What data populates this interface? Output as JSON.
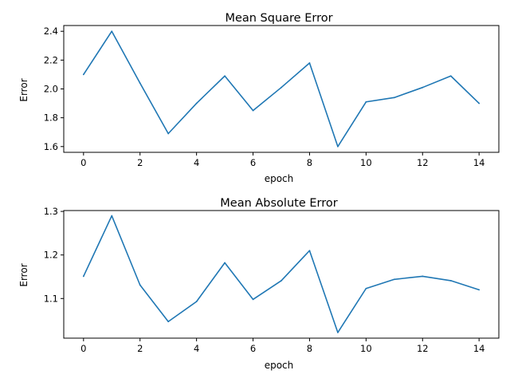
{
  "chart_data": [
    {
      "type": "line",
      "title": "Mean Square Error",
      "xlabel": "epoch",
      "ylabel": "Error",
      "xlim": [
        -0.7,
        14.7
      ],
      "ylim": [
        1.56,
        2.44
      ],
      "xticks": [
        0,
        2,
        4,
        6,
        8,
        10,
        12,
        14
      ],
      "xtick_labels": [
        "0",
        "2",
        "4",
        "6",
        "8",
        "10",
        "12",
        "14"
      ],
      "yticks": [
        1.6,
        1.8,
        2.0,
        2.2,
        2.4
      ],
      "ytick_labels": [
        "1.6",
        "1.8",
        "2.0",
        "2.2",
        "2.4"
      ],
      "grid": false,
      "color": "#1f77b4",
      "series": [
        {
          "x": [
            0,
            1,
            2,
            3,
            4,
            5,
            6,
            7,
            8,
            9,
            10,
            11,
            12,
            13,
            14
          ],
          "values": [
            2.1,
            2.4,
            2.04,
            1.69,
            1.9,
            2.09,
            1.85,
            2.01,
            2.18,
            1.6,
            1.91,
            1.94,
            2.01,
            2.09,
            1.9
          ]
        }
      ]
    },
    {
      "type": "line",
      "title": "Mean Absolute Error",
      "xlabel": "epoch",
      "ylabel": "Error",
      "xlim": [
        -0.7,
        14.7
      ],
      "ylim": [
        1.009,
        1.302
      ],
      "xticks": [
        0,
        2,
        4,
        6,
        8,
        10,
        12,
        14
      ],
      "xtick_labels": [
        "0",
        "2",
        "4",
        "6",
        "8",
        "10",
        "12",
        "14"
      ],
      "yticks": [
        1.1,
        1.2,
        1.3
      ],
      "ytick_labels": [
        "1.1",
        "1.2",
        "1.3"
      ],
      "grid": false,
      "color": "#1f77b4",
      "series": [
        {
          "x": [
            0,
            1,
            2,
            3,
            4,
            5,
            6,
            7,
            8,
            9,
            10,
            11,
            12,
            13,
            14
          ],
          "values": [
            1.151,
            1.29,
            1.131,
            1.047,
            1.093,
            1.182,
            1.098,
            1.141,
            1.21,
            1.022,
            1.123,
            1.144,
            1.151,
            1.141,
            1.12
          ]
        }
      ]
    }
  ]
}
